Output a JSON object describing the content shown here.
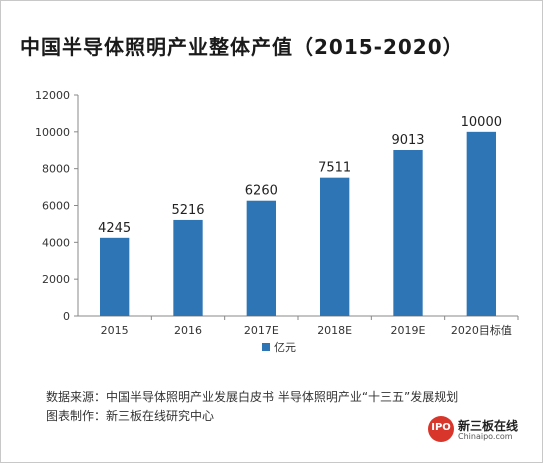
{
  "title": "中国半导体照明产业整体产值（2015-2020）",
  "chart_data": {
    "type": "bar",
    "categories": [
      "2015",
      "2016",
      "2017E",
      "2018E",
      "2019E",
      "2020目标值"
    ],
    "series": [
      {
        "name": "亿元",
        "values": [
          4245,
          5216,
          6260,
          7511,
          9013,
          10000
        ],
        "color": "#2e75b6"
      }
    ],
    "y_ticks": [
      "0",
      "2000",
      "4000",
      "6000",
      "8000",
      "10000",
      "12000"
    ],
    "ylim": [
      0,
      12000
    ],
    "grid": false,
    "legend_position": "bottom"
  },
  "source": {
    "data_source": "数据来源：中国半导体照明产业发展白皮书 半导体照明产业“十三五”发展规划",
    "made_by": "图表制作：新三板在线研究中心"
  },
  "logo": {
    "badge": "IPO",
    "name": "新三板在线",
    "domain": "Chinaipo.com"
  }
}
